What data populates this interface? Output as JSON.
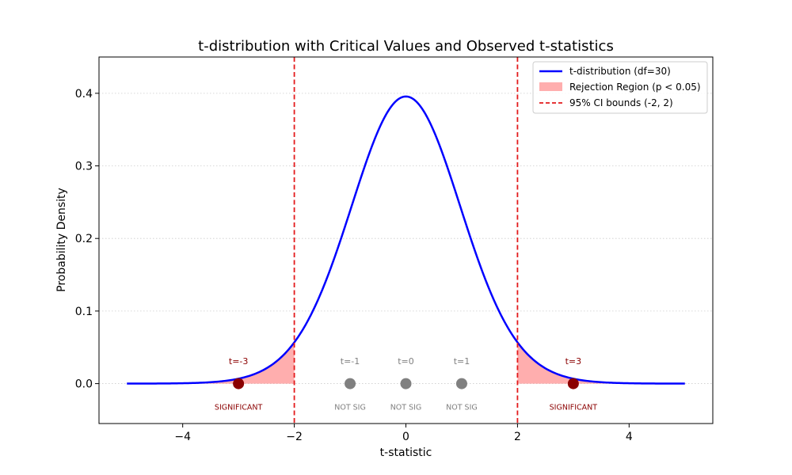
{
  "chart_data": {
    "type": "line",
    "title": "t-distribution with Critical Values and Observed t-statistics",
    "xlabel": "t-statistic",
    "ylabel": "Probability Density",
    "xlim": [
      -5.5,
      5.5
    ],
    "ylim": [
      -0.055,
      0.45
    ],
    "xticks": [
      -4,
      -2,
      0,
      2,
      4
    ],
    "xtick_labels": [
      "−4",
      "−2",
      "0",
      "2",
      "4"
    ],
    "yticks": [
      0.0,
      0.1,
      0.2,
      0.3,
      0.4
    ],
    "ytick_labels": [
      "0.0",
      "0.1",
      "0.2",
      "0.3",
      "0.4"
    ],
    "grid": {
      "axis": "y",
      "style": "dotted"
    },
    "distribution": {
      "df": 30,
      "x_range": [
        -5,
        5
      ],
      "color": "#0000ff"
    },
    "critical_values": [
      -2,
      2
    ],
    "critical_color": "#e31a1c",
    "rejection_fill_color": "#ff9a9a",
    "observed": [
      {
        "t": -3,
        "label": "t=-3",
        "status": "SIGNIFICANT",
        "significant": true
      },
      {
        "t": -1,
        "label": "t=-1",
        "status": "NOT SIG",
        "significant": false
      },
      {
        "t": 0,
        "label": "t=0",
        "status": "NOT SIG",
        "significant": false
      },
      {
        "t": 1,
        "label": "t=1",
        "status": "NOT SIG",
        "significant": false
      },
      {
        "t": 3,
        "label": "t=3",
        "status": "SIGNIFICANT",
        "significant": true
      }
    ],
    "significant_color": "#8b0000",
    "not_significant_color": "#808080",
    "legend": {
      "position": "top-right",
      "entries": [
        {
          "label": "t-distribution (df=30)",
          "kind": "line"
        },
        {
          "label": "Rejection Region (p < 0.05)",
          "kind": "patch"
        },
        {
          "label": "95% CI bounds (-2, 2)",
          "kind": "dashed"
        }
      ]
    }
  }
}
